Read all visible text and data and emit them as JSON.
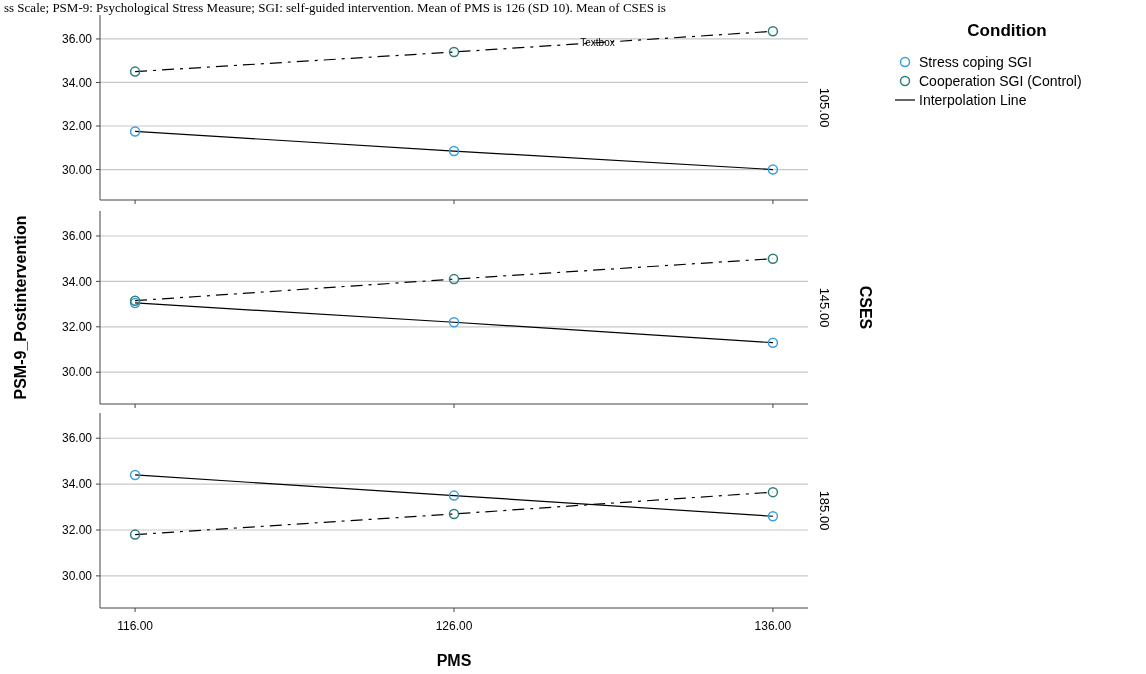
{
  "chart_data": [
    {
      "type": "line",
      "legend_title": "Condition",
      "legend": "right",
      "y2label": "105.00",
      "marker": "circle",
      "grid": "y",
      "tick_labels": "y",
      "annotations": [
        "ss Scale; PSM-9: Psychological Stress Measure; SGI: self-guided intervention. Mean of PMS is 126 (SD 10). Mean of CSES is",
        {
          "text": "Textbox",
          "x": 130.5,
          "y": 35.85
        }
      ],
      "x": [
        116,
        126,
        136
      ],
      "xlim": [
        114.9,
        137.1
      ],
      "xticks": [
        {
          "value": 116,
          "label": null
        },
        {
          "value": 126,
          "label": null
        },
        {
          "value": 136,
          "label": null
        }
      ],
      "ylim": [
        28.6,
        37.1
      ],
      "yticks": [
        {
          "value": 30,
          "label": "30.00"
        },
        {
          "value": 32,
          "label": "32.00"
        },
        {
          "value": 34,
          "label": "34.00"
        },
        {
          "value": 36,
          "label": "36.00"
        }
      ],
      "series": [
        {
          "name": "Interpolation Line",
          "color": "#000000",
          "marker": "none",
          "line_style": "solid",
          "values": [
            31.75,
            30.85,
            30.0
          ]
        },
        {
          "color": "#000000",
          "marker": "none",
          "line_style": "dashed",
          "values": [
            34.5,
            35.4,
            36.35
          ]
        },
        {
          "type": "scatter",
          "name": "Stress coping SGI",
          "color": "#3a9fe0",
          "values": [
            31.75,
            30.85,
            30.0
          ]
        },
        {
          "type": "scatter",
          "name": "Cooperation SGI (Control)",
          "color": "#2e7d78",
          "values": [
            34.5,
            35.4,
            36.35
          ]
        }
      ]
    },
    {
      "type": "line",
      "y2label": "145.00",
      "ylabel": "PSM-9_Postintervention",
      "marker": "circle",
      "grid": "y",
      "tick_labels": "y",
      "annotations": [
        "CSES"
      ],
      "x": [
        116,
        126,
        136
      ],
      "xlim": [
        114.9,
        137.1
      ],
      "xticks": [
        {
          "value": 116,
          "label": null
        },
        {
          "value": 126,
          "label": null
        },
        {
          "value": 136,
          "label": null
        }
      ],
      "ylim": [
        28.6,
        37.1
      ],
      "yticks": [
        {
          "value": 30,
          "label": "30.00"
        },
        {
          "value": 32,
          "label": "32.00"
        },
        {
          "value": 34,
          "label": "34.00"
        },
        {
          "value": 36,
          "label": "36.00"
        }
      ],
      "series": [
        {
          "color": "#000000",
          "marker": "none",
          "line_style": "solid",
          "values": [
            33.05,
            32.2,
            31.3
          ]
        },
        {
          "color": "#000000",
          "marker": "none",
          "line_style": "dashed",
          "values": [
            33.15,
            34.1,
            35.0
          ]
        },
        {
          "type": "scatter",
          "color": "#3a9fe0",
          "values": [
            33.05,
            32.2,
            31.3
          ]
        },
        {
          "type": "scatter",
          "color": "#2e7d78",
          "values": [
            33.15,
            34.1,
            35.0
          ]
        }
      ]
    },
    {
      "type": "line",
      "y2label": "185.00",
      "xlabel": "PMS",
      "marker": "circle",
      "grid": "y",
      "x": [
        116,
        126,
        136
      ],
      "xlim": [
        114.9,
        137.1
      ],
      "xticks": [
        {
          "value": 116,
          "label": "116.00"
        },
        {
          "value": 126,
          "label": "126.00"
        },
        {
          "value": 136,
          "label": "136.00"
        }
      ],
      "ylim": [
        28.6,
        37.1
      ],
      "yticks": [
        {
          "value": 30,
          "label": "30.00"
        },
        {
          "value": 32,
          "label": "32.00"
        },
        {
          "value": 34,
          "label": "34.00"
        },
        {
          "value": 36,
          "label": "36.00"
        }
      ],
      "series": [
        {
          "color": "#000000",
          "marker": "none",
          "line_style": "solid",
          "values": [
            34.4,
            33.5,
            32.6
          ]
        },
        {
          "color": "#000000",
          "marker": "none",
          "line_style": "dashed",
          "values": [
            31.8,
            32.7,
            33.65
          ]
        },
        {
          "type": "scatter",
          "color": "#3a9fe0",
          "values": [
            34.4,
            33.5,
            32.6
          ]
        },
        {
          "type": "scatter",
          "color": "#2e7d78",
          "values": [
            31.8,
            32.7,
            33.65
          ]
        }
      ]
    }
  ]
}
